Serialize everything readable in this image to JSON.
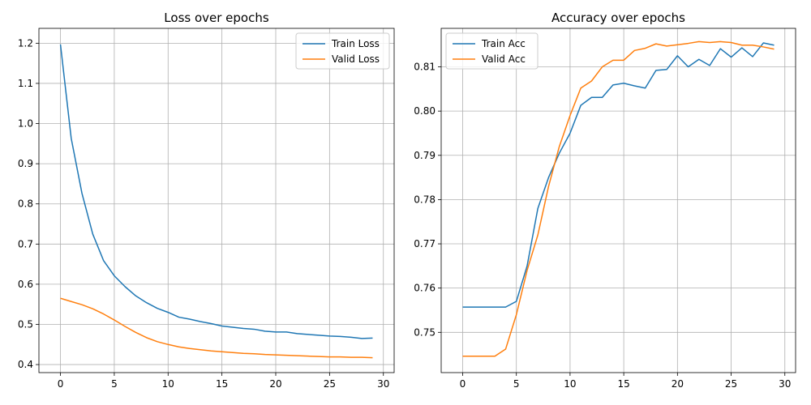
{
  "chart_data": [
    {
      "type": "line",
      "title": "Loss over epochs",
      "xlabel": "",
      "ylabel": "",
      "xlim": [
        -2,
        31
      ],
      "ylim": [
        0.38,
        1.237
      ],
      "xticks": [
        0,
        5,
        10,
        15,
        20,
        25,
        30
      ],
      "yticks": [
        0.4,
        0.5,
        0.6,
        0.7,
        0.8,
        0.9,
        1.0,
        1.1,
        1.2
      ],
      "grid": true,
      "legend": "top-right",
      "x": [
        0,
        1,
        2,
        3,
        4,
        5,
        6,
        7,
        8,
        9,
        10,
        11,
        12,
        13,
        14,
        15,
        16,
        17,
        18,
        19,
        20,
        21,
        22,
        23,
        24,
        25,
        26,
        27,
        28,
        29
      ],
      "series": [
        {
          "name": "Train Loss",
          "color": "#1f77b4",
          "values": [
            1.197,
            0.963,
            0.826,
            0.725,
            0.659,
            0.621,
            0.594,
            0.571,
            0.554,
            0.54,
            0.53,
            0.518,
            0.513,
            0.507,
            0.502,
            0.496,
            0.493,
            0.49,
            0.488,
            0.483,
            0.481,
            0.481,
            0.477,
            0.475,
            0.473,
            0.471,
            0.47,
            0.468,
            0.465,
            0.466
          ]
        },
        {
          "name": "Valid Loss",
          "color": "#ff7f0e",
          "values": [
            0.565,
            0.557,
            0.549,
            0.539,
            0.526,
            0.511,
            0.495,
            0.48,
            0.467,
            0.457,
            0.45,
            0.444,
            0.44,
            0.437,
            0.434,
            0.432,
            0.43,
            0.428,
            0.427,
            0.425,
            0.424,
            0.423,
            0.422,
            0.421,
            0.42,
            0.419,
            0.419,
            0.418,
            0.418,
            0.417
          ]
        }
      ]
    },
    {
      "type": "line",
      "title": "Accuracy over epochs",
      "xlabel": "",
      "ylabel": "",
      "xlim": [
        -2,
        31
      ],
      "ylim": [
        0.7409,
        0.8187
      ],
      "xticks": [
        0,
        5,
        10,
        15,
        20,
        25,
        30
      ],
      "yticks": [
        0.75,
        0.76,
        0.77,
        0.78,
        0.79,
        0.8,
        0.81
      ],
      "ytick_labels": [
        "0.75",
        "0.76",
        "0.77",
        "0.78",
        "0.79",
        "0.80",
        "0.81"
      ],
      "grid": true,
      "legend": "top-left",
      "x": [
        0,
        1,
        2,
        3,
        4,
        5,
        6,
        7,
        8,
        9,
        10,
        11,
        12,
        13,
        14,
        15,
        16,
        17,
        18,
        19,
        20,
        21,
        22,
        23,
        24,
        25,
        26,
        27,
        28,
        29
      ],
      "series": [
        {
          "name": "Train Acc",
          "color": "#1f77b4",
          "values": [
            0.7557,
            0.7557,
            0.7557,
            0.7557,
            0.7557,
            0.757,
            0.765,
            0.778,
            0.785,
            0.7905,
            0.795,
            0.8013,
            0.8031,
            0.8031,
            0.8059,
            0.8063,
            0.8057,
            0.8052,
            0.8092,
            0.8094,
            0.8125,
            0.81,
            0.8117,
            0.8103,
            0.8141,
            0.8122,
            0.8143,
            0.8123,
            0.8154,
            0.8149
          ]
        },
        {
          "name": "Valid Acc",
          "color": "#ff7f0e",
          "values": [
            0.7446,
            0.7446,
            0.7446,
            0.7446,
            0.7462,
            0.754,
            0.764,
            0.772,
            0.783,
            0.792,
            0.799,
            0.8052,
            0.8068,
            0.81,
            0.8115,
            0.8115,
            0.8137,
            0.8142,
            0.8152,
            0.8147,
            0.815,
            0.8153,
            0.8157,
            0.8155,
            0.8157,
            0.8155,
            0.8149,
            0.8149,
            0.8145,
            0.814
          ]
        }
      ]
    }
  ]
}
